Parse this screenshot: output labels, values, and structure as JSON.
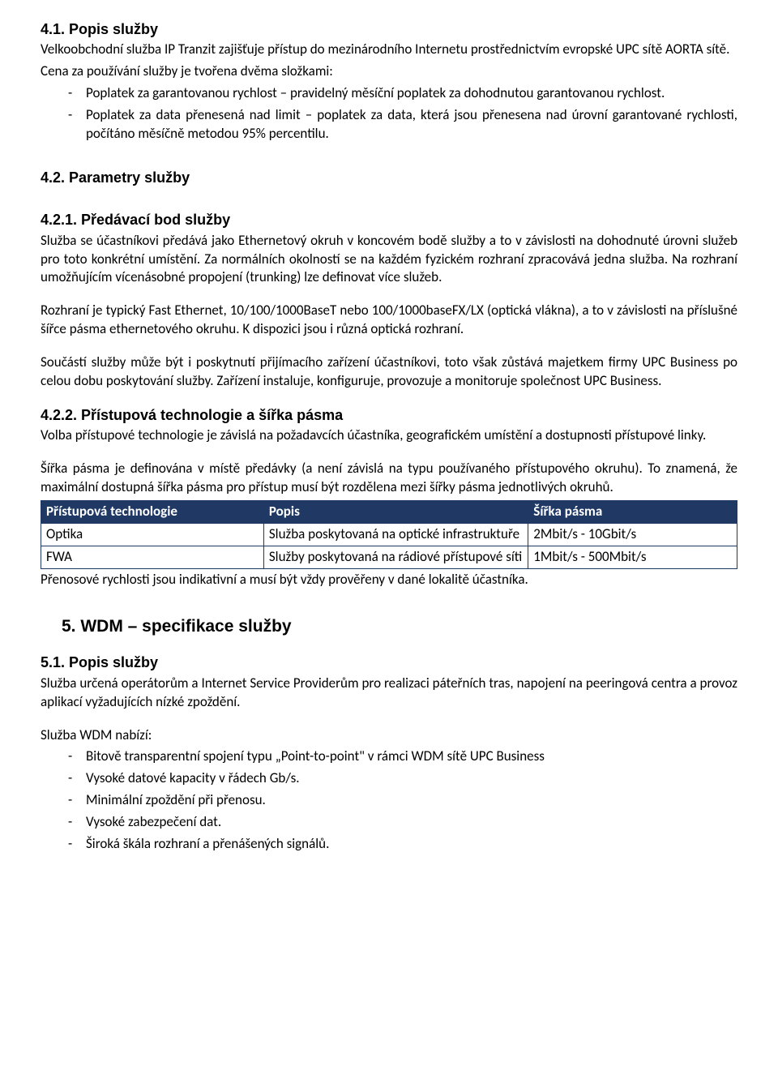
{
  "colors": {
    "table_header_bg": "#1f3864",
    "table_header_fg": "#ffffff",
    "text": "#000000",
    "background": "#ffffff",
    "table_border": "#1f3864"
  },
  "s41": {
    "heading": "4.1. Popis služby",
    "p1": "Velkoobchodní služba IP Tranzit zajišťuje přístup do mezinárodního Internetu prostřednictvím evropské UPC sítě AORTA sítě.",
    "p2": "Cena za používání služby je tvořena dvěma složkami:",
    "bullets": [
      "Poplatek za garantovanou rychlost – pravidelný měsíční poplatek za dohodnutou garantovanou rychlost.",
      "Poplatek za data přenesená nad limit – poplatek za data, která jsou přenesena nad úrovní garantované rychlosti, počítáno měsíčně metodou 95% percentilu."
    ]
  },
  "s42": {
    "heading": "4.2. Parametry služby"
  },
  "s421": {
    "heading": "4.2.1. Předávací bod služby",
    "p1": "Služba se účastníkovi předává jako Ethernetový okruh v koncovém bodě služby a to v závislosti na dohodnuté úrovni služeb pro toto konkrétní umístění. Za normálních okolností se na každém fyzickém rozhraní zpracovává jedna služba. Na rozhraní umožňujícím vícenásobné propojení (trunking) lze definovat více služeb.",
    "p2": "Rozhraní je typický Fast Ethernet, 10/100/1000BaseT nebo 100/1000baseFX/LX (optická vlákna), a to v závislosti na příslušné šířce pásma ethernetového okruhu. K dispozici jsou i různá optická rozhraní.",
    "p3": "Součástí služby může být i poskytnutí přijímacího zařízení účastníkovi, toto však zůstává majetkem firmy UPC Business po celou dobu poskytování služby. Zařízení instaluje, konfiguruje, provozuje a monitoruje společnost UPC Business."
  },
  "s422": {
    "heading": "4.2.2. Přístupová technologie a šířka pásma",
    "p1": "Volba přístupové technologie je závislá na požadavcích účastníka, geografickém umístění a dostupnosti přístupové linky.",
    "p2": "Šířka pásma je definována v místě předávky (a není závislá na typu používaného přístupového okruhu). To znamená, že maximální dostupná šířka pásma pro přístup musí být rozdělena mezi šířky pásma jednotlivých okruhů.",
    "table": {
      "columns": [
        "Přístupová technologie",
        "Popis",
        "Šířka pásma"
      ],
      "rows": [
        [
          "Optika",
          "Služba poskytovaná na optické infrastruktuře",
          "2Mbit/s - 10Gbit/s"
        ],
        [
          "FWA",
          "Služby poskytovaná na rádiové přístupové síti",
          "1Mbit/s - 500Mbit/s"
        ]
      ]
    },
    "note": "Přenosové rychlosti jsou indikativní a musí být vždy prověřeny v dané lokalitě účastníka."
  },
  "s5": {
    "heading": "5.  WDM – specifikace služby"
  },
  "s51": {
    "heading": "5.1. Popis služby",
    "p1": "Služba určená operátorům a Internet Service Providerům pro realizaci páteřních tras, napojení na peeringová centra a provoz aplikací vyžadujících nízké zpoždění.",
    "p2": "Služba WDM nabízí:",
    "bullets": [
      "Bitově transparentní spojení typu „Point-to-point\" v rámci WDM sítě UPC Business",
      "Vysoké datové kapacity v řádech Gb/s.",
      "Minimální zpoždění při přenosu.",
      "Vysoké zabezpečení dat.",
      "Široká škála rozhraní a přenášených signálů."
    ]
  }
}
